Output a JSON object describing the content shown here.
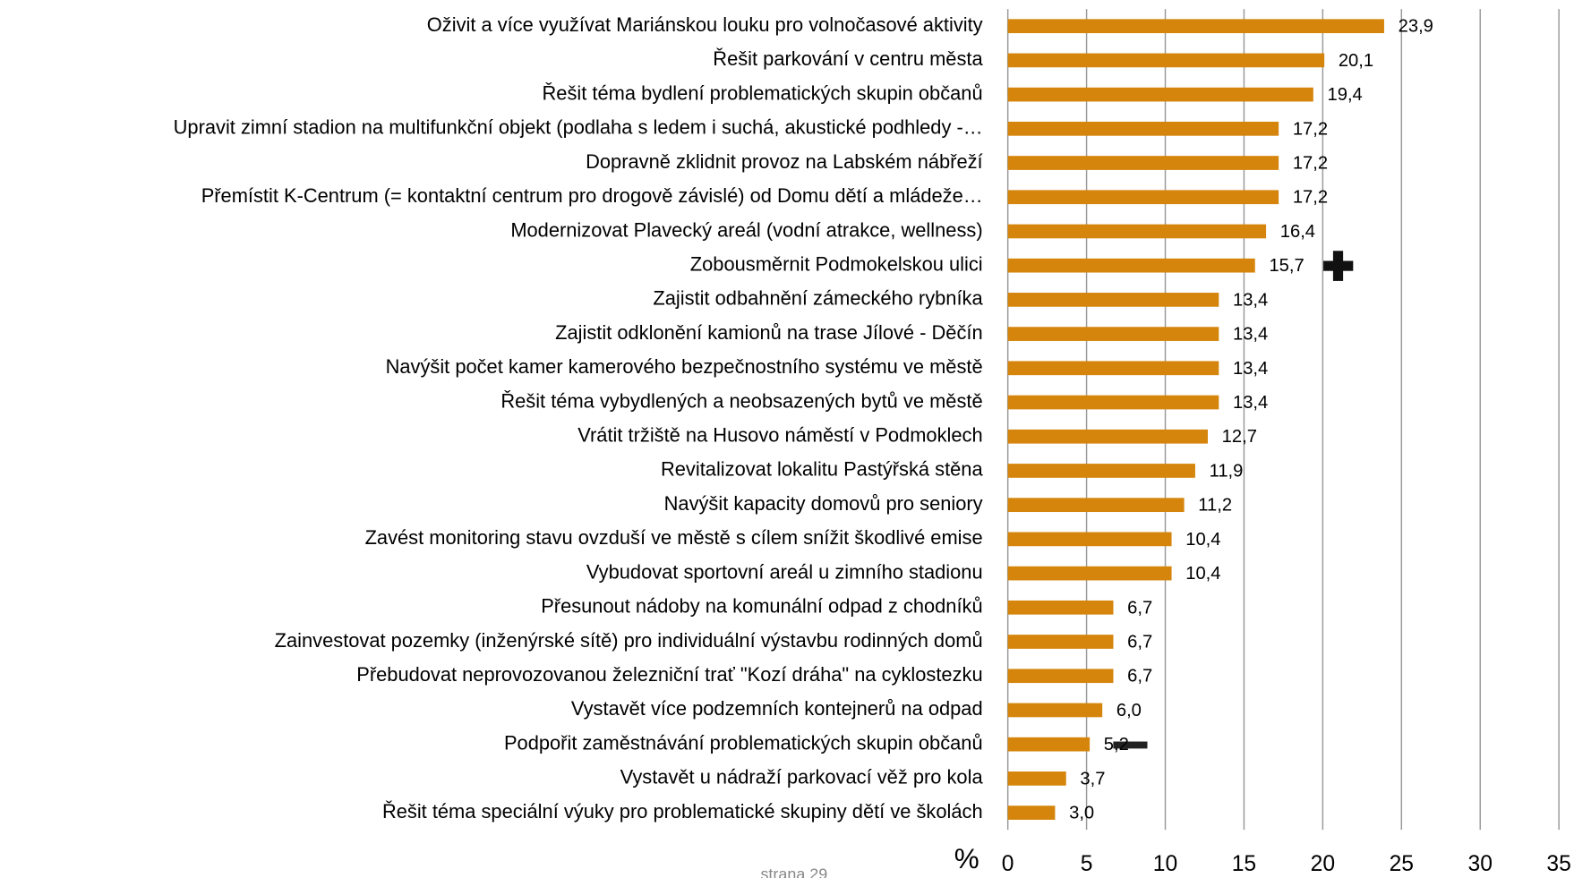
{
  "chart_data": {
    "type": "barh",
    "categories": [
      "Oživit a více využívat Mariánskou louku pro volnočasové aktivity",
      "Řešit parkování v centru města",
      "Řešit téma bydlení problematických skupin občanů",
      "Upravit zimní stadion na multifunkční objekt (podlaha s ledem i suchá, akustické podhledy -…",
      "Dopravně zklidnit provoz na Labském nábřeží",
      "Přemístit K-Centrum (= kontaktní centrum pro drogově závislé) od Domu dětí a mládeže…",
      "Modernizovat Plavecký areál (vodní atrakce, wellness)",
      "Zobousměrnit Podmokelskou ulici",
      "Zajistit odbahnění zámeckého rybníka",
      "Zajistit odklonění kamionů na trase Jílové - Děčín",
      "Navýšit počet kamer kamerového bezpečnostního systému ve městě",
      "Řešit téma vybydlených a neobsazených bytů ve městě",
      "Vrátit tržiště na Husovo náměstí v Podmoklech",
      "Revitalizovat lokalitu Pastýřská stěna",
      "Navýšit kapacity domovů pro seniory",
      "Zavést monitoring stavu ovzduší ve městě s cílem snížit škodlivé emise",
      "Vybudovat sportovní areál u zimního stadionu",
      "Přesunout nádoby na komunální odpad z chodníků",
      "Zainvestovat pozemky (inženýrské sítě) pro individuální výstavbu rodinných domů",
      "Přebudovat neprovozovanou železniční trať \"Kozí dráha\" na cyklostezku",
      "Vystavět více podzemních kontejnerů na odpad",
      "Podpořit zaměstnávání problematických skupin občanů",
      "Vystavět u nádraží parkovací věž pro kola",
      "Řešit téma speciální výuky pro problematické skupiny dětí ve školách"
    ],
    "values": [
      23.9,
      20.1,
      19.4,
      17.2,
      17.2,
      17.2,
      16.4,
      15.7,
      13.4,
      13.4,
      13.4,
      13.4,
      12.7,
      11.9,
      11.2,
      10.4,
      10.4,
      6.7,
      6.7,
      6.7,
      6.0,
      5.2,
      3.7,
      3.0
    ],
    "value_labels": [
      "23,9",
      "20,1",
      "19,4",
      "17,2",
      "17,2",
      "17,2",
      "16,4",
      "15,7",
      "13,4",
      "13,4",
      "13,4",
      "13,4",
      "12,7",
      "11,9",
      "11,2",
      "10,4",
      "10,4",
      "6,7",
      "6,7",
      "6,7",
      "6,0",
      "5,2",
      "3,7",
      "3,0"
    ],
    "color": "#d5850b",
    "xlabel": "%",
    "xlim": [
      0,
      35
    ],
    "xticks": [
      0,
      5,
      10,
      15,
      20,
      25,
      30,
      35
    ],
    "grid": true,
    "footer": "strana 29"
  }
}
